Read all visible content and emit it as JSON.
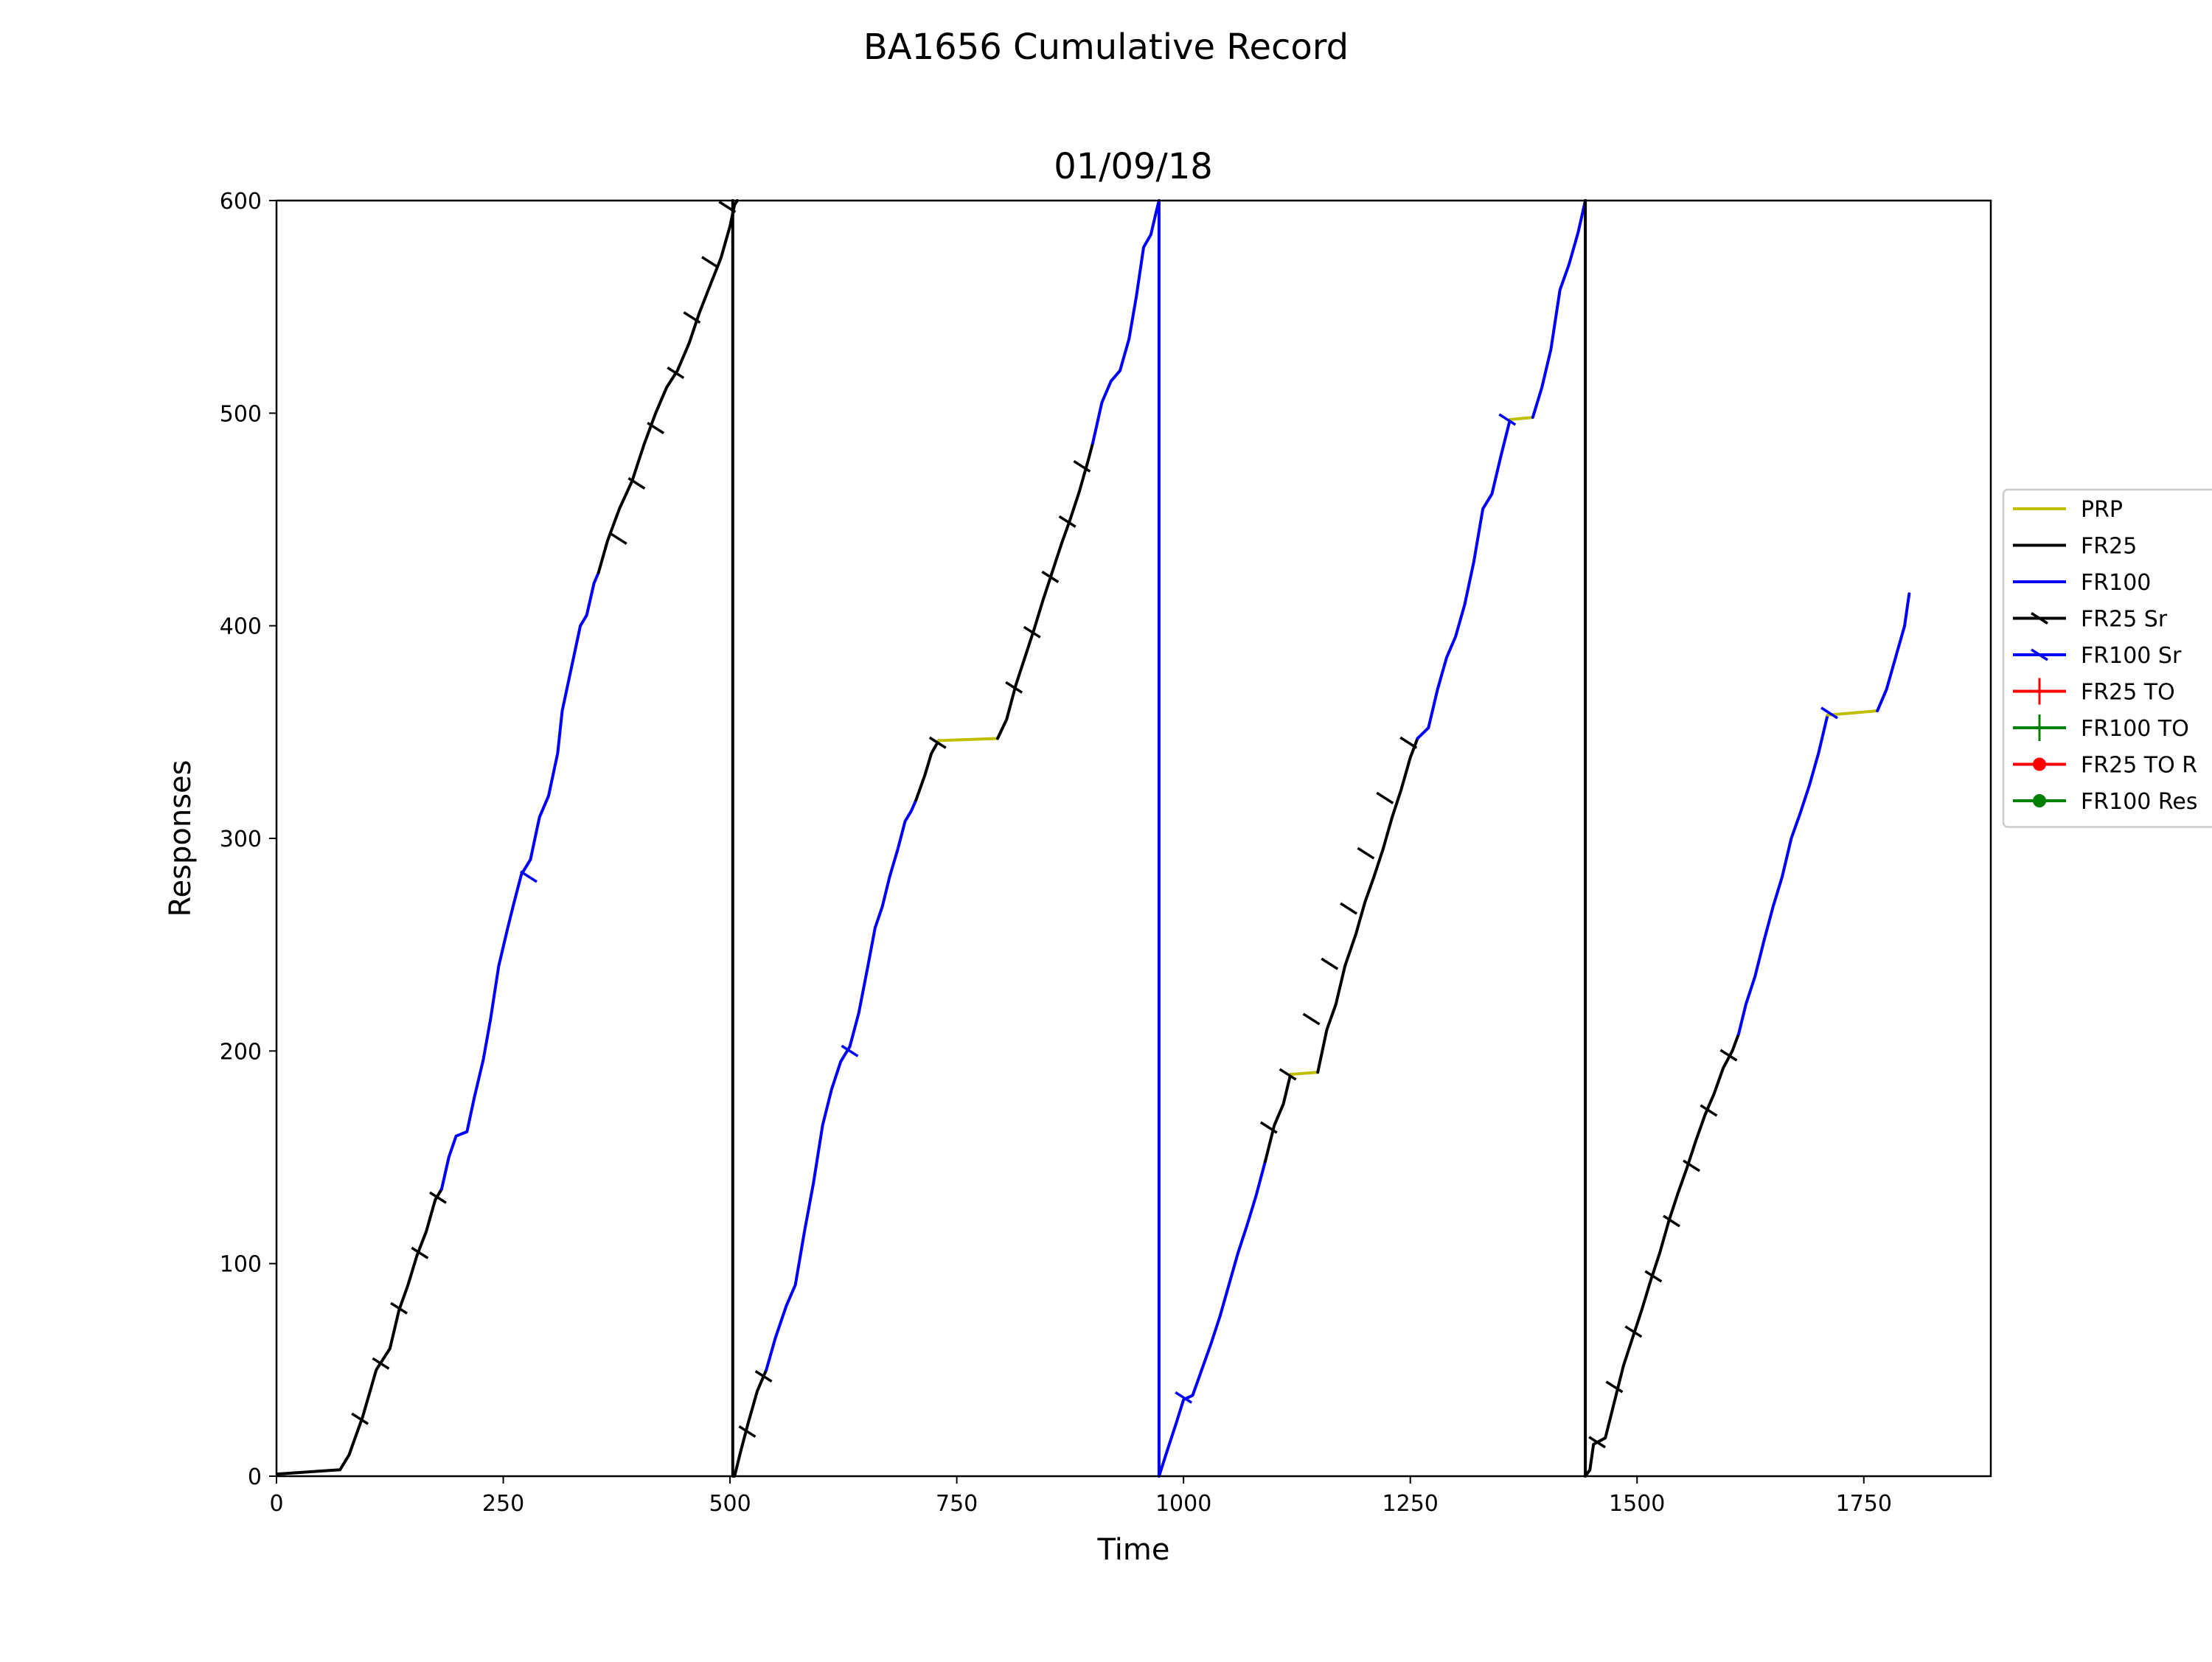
{
  "figure": {
    "suptitle": "BA1656 Cumulative Record",
    "title": "01/09/18"
  },
  "chart_data": {
    "type": "line",
    "title": "01/09/18",
    "suptitle": "BA1656 Cumulative Record",
    "xlabel": "Time",
    "ylabel": "Responses",
    "xlim": [
      0,
      1890
    ],
    "ylim": [
      0,
      600
    ],
    "xticks": [
      0,
      250,
      500,
      750,
      1000,
      1250,
      1500,
      1750
    ],
    "yticks": [
      0,
      100,
      200,
      300,
      400,
      500,
      600
    ],
    "grid": false,
    "legend_placement": "right, outside plot",
    "colors": {
      "PRP": "#bfbf00",
      "FR25": "#000000",
      "FR100": "#0000ff",
      "FR25 TO": "#ff0000",
      "FR100 TO": "#008000"
    },
    "legend": [
      {
        "label": "PRP",
        "color": "#bfbf00",
        "marker": "none"
      },
      {
        "label": "FR25",
        "color": "#000000",
        "marker": "none"
      },
      {
        "label": "FR100",
        "color": "#0000ff",
        "marker": "none"
      },
      {
        "label": "FR25 Sr",
        "color": "#000000",
        "marker": "tick"
      },
      {
        "label": "FR100 Sr",
        "color": "#0000ff",
        "marker": "tick"
      },
      {
        "label": "FR25 TO",
        "color": "#ff0000",
        "marker": "plus"
      },
      {
        "label": "FR100 TO",
        "color": "#008000",
        "marker": "plus"
      },
      {
        "label": "FR25 TO R",
        "color": "#ff0000",
        "marker": "dot"
      },
      {
        "label": "FR100 Res",
        "color": "#008000",
        "marker": "dot"
      }
    ],
    "series": [
      {
        "name": "FR25",
        "color": "#000000",
        "points": [
          [
            0,
            1
          ],
          [
            70,
            3
          ],
          [
            80,
            10
          ],
          [
            95,
            28
          ],
          [
            110,
            50
          ],
          [
            125,
            60
          ],
          [
            135,
            78
          ],
          [
            145,
            90
          ],
          [
            155,
            104
          ],
          [
            165,
            115
          ],
          [
            175,
            130
          ],
          [
            182,
            135
          ]
        ]
      },
      {
        "name": "FR100",
        "color": "#0000ff",
        "points": [
          [
            182,
            135
          ],
          [
            190,
            150
          ],
          [
            198,
            160
          ],
          [
            210,
            162
          ],
          [
            218,
            178
          ],
          [
            228,
            196
          ],
          [
            236,
            215
          ],
          [
            245,
            240
          ],
          [
            255,
            258
          ],
          [
            262,
            270
          ],
          [
            270,
            283
          ],
          [
            280,
            290
          ],
          [
            290,
            310
          ],
          [
            300,
            320
          ],
          [
            310,
            340
          ],
          [
            315,
            360
          ],
          [
            325,
            380
          ],
          [
            335,
            400
          ],
          [
            342,
            405
          ],
          [
            350,
            420
          ],
          [
            355,
            425
          ]
        ]
      },
      {
        "name": "FR25",
        "color": "#000000",
        "points": [
          [
            355,
            425
          ],
          [
            365,
            440
          ],
          [
            378,
            455
          ],
          [
            392,
            468
          ],
          [
            405,
            485
          ],
          [
            418,
            500
          ],
          [
            430,
            512
          ],
          [
            442,
            520
          ],
          [
            455,
            533
          ],
          [
            466,
            547
          ],
          [
            478,
            560
          ],
          [
            490,
            573
          ],
          [
            500,
            588
          ],
          [
            505,
            598
          ],
          [
            508,
            600
          ]
        ]
      },
      {
        "name": "FR25",
        "color": "#000000",
        "points": [
          [
            503,
            600
          ],
          [
            503,
            0
          ],
          [
            505,
            0
          ],
          [
            512,
            12
          ],
          [
            520,
            25
          ],
          [
            530,
            40
          ],
          [
            540,
            50
          ]
        ]
      },
      {
        "name": "FR100",
        "color": "#0000ff",
        "points": [
          [
            540,
            50
          ],
          [
            550,
            65
          ],
          [
            562,
            80
          ],
          [
            572,
            90
          ],
          [
            582,
            115
          ],
          [
            592,
            138
          ],
          [
            602,
            165
          ],
          [
            612,
            182
          ],
          [
            622,
            195
          ],
          [
            632,
            202
          ],
          [
            642,
            218
          ],
          [
            652,
            240
          ],
          [
            660,
            258
          ],
          [
            668,
            268
          ],
          [
            676,
            282
          ],
          [
            685,
            295
          ],
          [
            693,
            308
          ],
          [
            700,
            313
          ],
          [
            705,
            318
          ]
        ]
      },
      {
        "name": "FR25",
        "color": "#000000",
        "points": [
          [
            705,
            318
          ],
          [
            715,
            330
          ],
          [
            722,
            340
          ],
          [
            730,
            346
          ]
        ]
      },
      {
        "name": "PRP",
        "color": "#bfbf00",
        "points": [
          [
            730,
            346
          ],
          [
            795,
            347
          ]
        ]
      },
      {
        "name": "FR25",
        "color": "#000000",
        "points": [
          [
            795,
            347
          ],
          [
            805,
            356
          ],
          [
            815,
            372
          ],
          [
            825,
            385
          ],
          [
            835,
            398
          ],
          [
            845,
            412
          ],
          [
            855,
            425
          ],
          [
            865,
            438
          ],
          [
            875,
            450
          ],
          [
            885,
            463
          ],
          [
            895,
            478
          ],
          [
            900,
            486
          ]
        ]
      },
      {
        "name": "FR100",
        "color": "#0000ff",
        "points": [
          [
            900,
            486
          ],
          [
            910,
            505
          ],
          [
            920,
            515
          ],
          [
            930,
            520
          ],
          [
            940,
            535
          ],
          [
            948,
            555
          ],
          [
            956,
            578
          ],
          [
            964,
            584
          ],
          [
            970,
            595
          ],
          [
            973,
            600
          ],
          [
            973,
            0
          ]
        ]
      },
      {
        "name": "FR100",
        "color": "#0000ff",
        "points": [
          [
            973,
            0
          ],
          [
            982,
            12
          ],
          [
            992,
            25
          ],
          [
            1000,
            36
          ],
          [
            1010,
            38
          ],
          [
            1020,
            50
          ],
          [
            1030,
            62
          ],
          [
            1040,
            75
          ],
          [
            1050,
            90
          ],
          [
            1060,
            105
          ],
          [
            1070,
            118
          ],
          [
            1080,
            132
          ],
          [
            1090,
            148
          ]
        ]
      },
      {
        "name": "FR25",
        "color": "#000000",
        "points": [
          [
            1090,
            148
          ],
          [
            1100,
            165
          ],
          [
            1110,
            175
          ],
          [
            1118,
            189
          ]
        ]
      },
      {
        "name": "PRP",
        "color": "#bfbf00",
        "points": [
          [
            1118,
            189
          ],
          [
            1148,
            190
          ]
        ]
      },
      {
        "name": "FR25",
        "color": "#000000",
        "points": [
          [
            1148,
            190
          ],
          [
            1158,
            210
          ],
          [
            1168,
            222
          ],
          [
            1178,
            240
          ],
          [
            1190,
            255
          ],
          [
            1200,
            270
          ],
          [
            1210,
            282
          ],
          [
            1220,
            295
          ],
          [
            1230,
            310
          ],
          [
            1240,
            323
          ],
          [
            1250,
            338
          ],
          [
            1258,
            347
          ]
        ]
      },
      {
        "name": "FR100",
        "color": "#0000ff",
        "points": [
          [
            1258,
            347
          ],
          [
            1270,
            352
          ],
          [
            1280,
            370
          ],
          [
            1290,
            385
          ],
          [
            1300,
            395
          ],
          [
            1310,
            410
          ],
          [
            1320,
            430
          ],
          [
            1330,
            455
          ],
          [
            1340,
            462
          ],
          [
            1350,
            480
          ],
          [
            1360,
            497
          ]
        ]
      },
      {
        "name": "PRP",
        "color": "#bfbf00",
        "points": [
          [
            1360,
            497
          ],
          [
            1385,
            498
          ]
        ]
      },
      {
        "name": "FR100",
        "color": "#0000ff",
        "points": [
          [
            1385,
            498
          ],
          [
            1395,
            512
          ],
          [
            1405,
            530
          ],
          [
            1415,
            558
          ],
          [
            1425,
            570
          ],
          [
            1435,
            585
          ],
          [
            1443,
            600
          ]
        ]
      },
      {
        "name": "FR25",
        "color": "#000000",
        "points": [
          [
            1443,
            600
          ],
          [
            1443,
            0
          ],
          [
            1448,
            3
          ],
          [
            1452,
            15
          ],
          [
            1465,
            18
          ],
          [
            1475,
            35
          ],
          [
            1485,
            52
          ],
          [
            1495,
            65
          ],
          [
            1505,
            78
          ],
          [
            1515,
            92
          ],
          [
            1525,
            105
          ],
          [
            1535,
            120
          ],
          [
            1545,
            133
          ],
          [
            1555,
            145
          ],
          [
            1565,
            158
          ],
          [
            1575,
            170
          ],
          [
            1585,
            180
          ],
          [
            1595,
            192
          ],
          [
            1605,
            200
          ],
          [
            1612,
            208
          ]
        ]
      },
      {
        "name": "FR100",
        "color": "#0000ff",
        "points": [
          [
            1612,
            208
          ],
          [
            1620,
            222
          ],
          [
            1630,
            235
          ],
          [
            1640,
            252
          ],
          [
            1650,
            268
          ],
          [
            1660,
            282
          ],
          [
            1670,
            300
          ],
          [
            1680,
            312
          ],
          [
            1690,
            325
          ],
          [
            1700,
            340
          ],
          [
            1710,
            358
          ]
        ]
      },
      {
        "name": "PRP",
        "color": "#bfbf00",
        "points": [
          [
            1710,
            358
          ],
          [
            1765,
            360
          ]
        ]
      },
      {
        "name": "FR100",
        "color": "#0000ff",
        "points": [
          [
            1765,
            360
          ],
          [
            1775,
            370
          ],
          [
            1785,
            385
          ],
          [
            1795,
            400
          ],
          [
            1800,
            415
          ]
        ]
      }
    ],
    "sr_markers": [
      {
        "series": "FR25 Sr",
        "color": "#000000",
        "points": [
          [
            92,
            27
          ],
          [
            115,
            53
          ],
          [
            135,
            79
          ],
          [
            158,
            105
          ],
          [
            178,
            131
          ],
          [
            377,
            441
          ],
          [
            397,
            467
          ],
          [
            418,
            493
          ],
          [
            440,
            519
          ],
          [
            458,
            545
          ],
          [
            478,
            571
          ],
          [
            497,
            597
          ],
          [
            519,
            21
          ],
          [
            537,
            47
          ],
          [
            729,
            345
          ],
          [
            813,
            371
          ],
          [
            833,
            397
          ],
          [
            853,
            423
          ],
          [
            872,
            449
          ],
          [
            888,
            475
          ],
          [
            1094,
            164
          ],
          [
            1115,
            189
          ],
          [
            1141,
            215
          ],
          [
            1161,
            241
          ],
          [
            1182,
            267
          ],
          [
            1201,
            293
          ],
          [
            1222,
            319
          ],
          [
            1248,
            345
          ],
          [
            1456,
            16
          ],
          [
            1475,
            42
          ],
          [
            1496,
            68
          ],
          [
            1518,
            94
          ],
          [
            1538,
            120
          ],
          [
            1560,
            146
          ],
          [
            1579,
            172
          ],
          [
            1601,
            198
          ]
        ]
      },
      {
        "series": "FR100 Sr",
        "color": "#0000ff",
        "points": [
          [
            278,
            282
          ],
          [
            632,
            200
          ],
          [
            1000,
            37
          ],
          [
            1357,
            497
          ],
          [
            1712,
            359
          ]
        ]
      }
    ]
  }
}
